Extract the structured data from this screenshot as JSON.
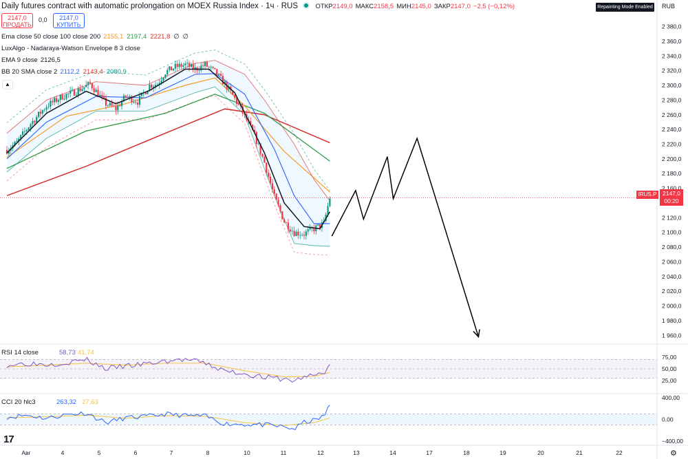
{
  "header": {
    "title": "Daily futures contract with automatic prolongation on MOEX Russia Index · 1ч · RUS",
    "ohlc": [
      {
        "label": "ОТКР",
        "value": "2149,0"
      },
      {
        "label": "МАКС",
        "value": "2158,5"
      },
      {
        "label": "МИН",
        "value": "2145,0"
      },
      {
        "label": "ЗАКР",
        "value": "2147,0"
      },
      {
        "label": "",
        "value": "−2,5 (−0,12%)"
      }
    ],
    "repaint_badge": "Repainting Mode Enabled",
    "currency": "RUB"
  },
  "trade": {
    "sell_price": "2147,0",
    "sell_label": "ПРОДАТЬ",
    "spread": "0,0",
    "buy_price": "2147,0",
    "buy_label": "КУПИТЬ"
  },
  "indicators": [
    {
      "name": "Ema close 50 close 100 close 200",
      "values": [
        {
          "v": "2155,1",
          "color": "#f59b2a"
        },
        {
          "v": "2197,4",
          "color": "#2e9a47"
        },
        {
          "v": "2221,8",
          "color": "#d3322f"
        },
        {
          "v": "∅",
          "color": "#131722"
        },
        {
          "v": "∅",
          "color": "#131722"
        }
      ]
    },
    {
      "name": "LuxAlgo - Nadaraya-Watson Envelope 8 3 close",
      "values": []
    },
    {
      "name": "EMA 9 close",
      "values": [
        {
          "v": "2126,5",
          "color": "#131722"
        }
      ]
    },
    {
      "name": "BB 20 SMA close 2",
      "values": [
        {
          "v": "2112,2",
          "color": "#2962ff"
        },
        {
          "v": "2143,4",
          "color": "#d3322f"
        },
        {
          "v": "2080,9",
          "color": "#089981"
        }
      ]
    }
  ],
  "price_tag": {
    "symbol": "IRUS.P",
    "price": "2147,0",
    "timer": "00:20"
  },
  "colors": {
    "up": "#089981",
    "down": "#f23645",
    "ema9": "#131722",
    "ema50": "#f59b2a",
    "ema100": "#2e9a47",
    "ema200": "#d3322f",
    "bb_basis": "#2962ff",
    "bb_upper": "#d3322f",
    "bb_lower": "#089981",
    "rsi": "#7e57c2",
    "cci": "#2962ff",
    "ma_yellow": "#f5c242"
  },
  "chart_data": [
    {
      "type": "candlestick",
      "x_ticks": [
        "Авг",
        "4",
        "5",
        "6",
        "7",
        "8",
        "10",
        "11",
        "12",
        "13",
        "14",
        "17",
        "18",
        "19",
        "20",
        "21",
        "22"
      ],
      "y_ticks": [
        "2 380,0",
        "2 360,0",
        "2 340,0",
        "2 320,0",
        "2 300,0",
        "2 280,0",
        "2 260,0",
        "2 240,0",
        "2 220,0",
        "2 200,0",
        "2 180,0",
        "2 160,0",
        "2 140,0",
        "2 120,0",
        "2 100,0",
        "2 080,0",
        "2 060,0",
        "2 040,0",
        "2 020,0",
        "2 000,0",
        "1 980,0",
        "1 960,0"
      ],
      "ylim": [
        1950,
        2388
      ],
      "last_price": 2147.0,
      "price_path": [
        [
          0,
          2212
        ],
        [
          0.05,
          2222
        ],
        [
          0.12,
          2248
        ],
        [
          0.2,
          2272
        ],
        [
          0.28,
          2285
        ],
        [
          0.35,
          2292
        ],
        [
          0.42,
          2302
        ],
        [
          0.5,
          2275
        ],
        [
          0.55,
          2268
        ],
        [
          0.6,
          2285
        ],
        [
          0.66,
          2278
        ],
        [
          0.72,
          2300
        ],
        [
          0.76,
          2302
        ],
        [
          0.8,
          2318
        ],
        [
          0.85,
          2325
        ],
        [
          0.9,
          2328
        ],
        [
          0.95,
          2322
        ],
        [
          1.0,
          2328
        ],
        [
          1.05,
          2318
        ],
        [
          1.1,
          2302
        ],
        [
          1.15,
          2282
        ],
        [
          1.2,
          2258
        ],
        [
          1.25,
          2232
        ],
        [
          1.3,
          2195
        ],
        [
          1.35,
          2148
        ],
        [
          1.4,
          2115
        ],
        [
          1.45,
          2100
        ],
        [
          1.5,
          2098
        ],
        [
          1.55,
          2105
        ],
        [
          1.6,
          2112
        ],
        [
          1.63,
          2147
        ]
      ],
      "forecast_path": [
        [
          1.64,
          2095
        ],
        [
          1.76,
          2157
        ],
        [
          1.8,
          2118
        ],
        [
          1.92,
          2203
        ],
        [
          1.95,
          2146
        ],
        [
          2.07,
          2228
        ],
        [
          2.38,
          1958
        ]
      ],
      "ema9_path": [
        [
          0,
          2208
        ],
        [
          0.2,
          2262
        ],
        [
          0.4,
          2292
        ],
        [
          0.55,
          2275
        ],
        [
          0.72,
          2293
        ],
        [
          0.9,
          2322
        ],
        [
          1.02,
          2322
        ],
        [
          1.15,
          2290
        ],
        [
          1.3,
          2208
        ],
        [
          1.4,
          2140
        ],
        [
          1.5,
          2108
        ],
        [
          1.58,
          2105
        ],
        [
          1.63,
          2128
        ]
      ],
      "ema50_path": [
        [
          0,
          2202
        ],
        [
          0.3,
          2258
        ],
        [
          0.6,
          2275
        ],
        [
          0.9,
          2300
        ],
        [
          1.05,
          2310
        ],
        [
          1.2,
          2272
        ],
        [
          1.4,
          2210
        ],
        [
          1.63,
          2155
        ]
      ],
      "ema100_path": [
        [
          0,
          2187
        ],
        [
          0.4,
          2238
        ],
        [
          0.8,
          2262
        ],
        [
          1.05,
          2288
        ],
        [
          1.3,
          2262
        ],
        [
          1.63,
          2197
        ]
      ],
      "ema200_path": [
        [
          0,
          2150
        ],
        [
          0.4,
          2190
        ],
        [
          0.8,
          2235
        ],
        [
          1.1,
          2268
        ],
        [
          1.3,
          2260
        ],
        [
          1.63,
          2222
        ]
      ],
      "bb_basis_path": [
        [
          0,
          2200
        ],
        [
          0.2,
          2250
        ],
        [
          0.45,
          2285
        ],
        [
          0.7,
          2283
        ],
        [
          0.95,
          2315
        ],
        [
          1.05,
          2316
        ],
        [
          1.2,
          2288
        ],
        [
          1.35,
          2213
        ],
        [
          1.45,
          2150
        ],
        [
          1.55,
          2112
        ],
        [
          1.63,
          2112
        ]
      ],
      "bb_upper_path": [
        [
          0,
          2235
        ],
        [
          0.2,
          2280
        ],
        [
          0.45,
          2305
        ],
        [
          0.7,
          2300
        ],
        [
          0.95,
          2330
        ],
        [
          1.05,
          2334
        ],
        [
          1.2,
          2315
        ],
        [
          1.3,
          2280
        ],
        [
          1.45,
          2220
        ],
        [
          1.55,
          2172
        ],
        [
          1.63,
          2143
        ]
      ],
      "bb_lower_path": [
        [
          0,
          2182
        ],
        [
          0.2,
          2228
        ],
        [
          0.45,
          2265
        ],
        [
          0.7,
          2265
        ],
        [
          0.95,
          2290
        ],
        [
          1.05,
          2298
        ],
        [
          1.2,
          2260
        ],
        [
          1.35,
          2150
        ],
        [
          1.45,
          2085
        ],
        [
          1.55,
          2082
        ],
        [
          1.63,
          2081
        ]
      ]
    },
    {
      "type": "line",
      "name": "RSI 14 close",
      "values_label": [
        "58,73",
        "41,74"
      ],
      "y_ticks": [
        "75,00",
        "50,00",
        "25,00"
      ],
      "ylim": [
        0,
        100
      ],
      "rsi_path": [
        [
          0,
          58
        ],
        [
          0.1,
          62
        ],
        [
          0.2,
          60
        ],
        [
          0.3,
          63
        ],
        [
          0.4,
          70
        ],
        [
          0.5,
          50
        ],
        [
          0.6,
          56
        ],
        [
          0.7,
          60
        ],
        [
          0.8,
          66
        ],
        [
          0.9,
          70
        ],
        [
          1.0,
          62
        ],
        [
          1.1,
          45
        ],
        [
          1.2,
          40
        ],
        [
          1.3,
          32
        ],
        [
          1.4,
          28
        ],
        [
          1.45,
          24
        ],
        [
          1.5,
          33
        ],
        [
          1.55,
          36
        ],
        [
          1.6,
          42
        ],
        [
          1.63,
          59
        ]
      ],
      "ma_path": [
        [
          0,
          54
        ],
        [
          0.2,
          58
        ],
        [
          0.4,
          62
        ],
        [
          0.6,
          58
        ],
        [
          0.8,
          62
        ],
        [
          1.0,
          62
        ],
        [
          1.2,
          46
        ],
        [
          1.4,
          33
        ],
        [
          1.55,
          34
        ],
        [
          1.63,
          42
        ]
      ]
    },
    {
      "type": "line",
      "name": "CCI 20 hlc3",
      "values_label": [
        "263,32",
        "27,63"
      ],
      "y_ticks": [
        "400,00",
        "0,00",
        "−400,00"
      ],
      "ylim": [
        -450,
        450
      ],
      "cci_path": [
        [
          0,
          40
        ],
        [
          0.1,
          80
        ],
        [
          0.2,
          20
        ],
        [
          0.3,
          90
        ],
        [
          0.4,
          120
        ],
        [
          0.5,
          -60
        ],
        [
          0.6,
          30
        ],
        [
          0.7,
          50
        ],
        [
          0.8,
          100
        ],
        [
          0.9,
          70
        ],
        [
          1.0,
          60
        ],
        [
          1.1,
          -80
        ],
        [
          1.2,
          -90
        ],
        [
          1.3,
          -100
        ],
        [
          1.4,
          -140
        ],
        [
          1.45,
          -180
        ],
        [
          1.5,
          -50
        ],
        [
          1.55,
          -20
        ],
        [
          1.6,
          60
        ],
        [
          1.63,
          263
        ]
      ],
      "ma_path": [
        [
          0,
          30
        ],
        [
          0.2,
          50
        ],
        [
          0.4,
          80
        ],
        [
          0.6,
          20
        ],
        [
          0.8,
          70
        ],
        [
          1.0,
          60
        ],
        [
          1.2,
          -60
        ],
        [
          1.4,
          -110
        ],
        [
          1.55,
          -60
        ],
        [
          1.63,
          28
        ]
      ]
    }
  ]
}
